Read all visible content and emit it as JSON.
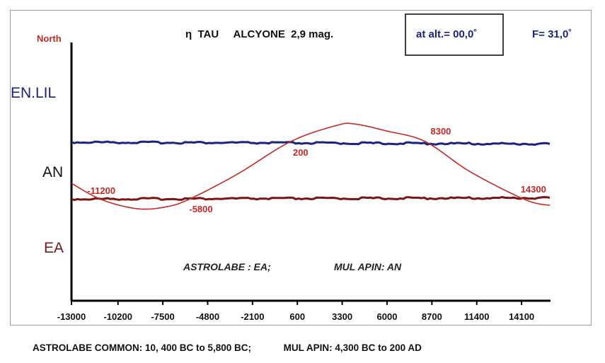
{
  "header": {
    "north": "North",
    "star": "η  TAU     ALCYONE  2,9 mag.",
    "altitude": "at alt.= 00,0˚",
    "latitude": "F= 31,0˚"
  },
  "labels": {
    "enlil": "EN.LIL",
    "an": "AN",
    "ea": "EA",
    "note_astrolabe": "ASTROLABE :  EA;",
    "note_mulapin": "MUL APIN:  AN"
  },
  "caption": {
    "astrolabe": "ASTROLABE COMMON:  10, 400 BC to 5,800 BC;",
    "mulapin": "MUL APIN: 4,300 BC to 200 AD"
  },
  "colors": {
    "enlil": "#1a237e",
    "ea_band": "#7b1414",
    "star": "#c62828",
    "north": "#c62828",
    "ea_label": "#6d1b1b"
  },
  "chart_data": {
    "type": "line",
    "title": "",
    "xlabel": "",
    "ylabel": "",
    "xlim": [
      -13000,
      15800
    ],
    "x_ticks": [
      -13000,
      -10200,
      -7500,
      -4800,
      -2100,
      600,
      3300,
      6000,
      8700,
      11400,
      14100
    ],
    "y_band_levels": {
      "EN.LIL": 0.0,
      "AN": 1.0,
      "EA": 2.0
    },
    "series": [
      {
        "name": "EN.LIL",
        "x": [
          -13000,
          15800
        ],
        "y": [
          0.02,
          0.05
        ]
      },
      {
        "name": "EA",
        "x": [
          -13000,
          15800
        ],
        "y": [
          1.0,
          0.98
        ]
      },
      {
        "name": "",
        "x": [
          -13000,
          -11200,
          -9000,
          -7200,
          -5800,
          -3000,
          200,
          3000,
          4100,
          6000,
          8300,
          11000,
          14300,
          15800
        ],
        "y": [
          0.72,
          1.0,
          1.16,
          1.12,
          0.98,
          0.56,
          0.0,
          -0.28,
          -0.3,
          -0.18,
          0.0,
          0.52,
          1.0,
          1.1
        ]
      }
    ],
    "annotations": [
      {
        "text": "-11200",
        "x": -11200
      },
      {
        "text": "-5800",
        "x": -5800
      },
      {
        "text": "200",
        "x": 200
      },
      {
        "text": "8300",
        "x": 8300
      },
      {
        "text": "14300",
        "x": 14300
      }
    ]
  }
}
